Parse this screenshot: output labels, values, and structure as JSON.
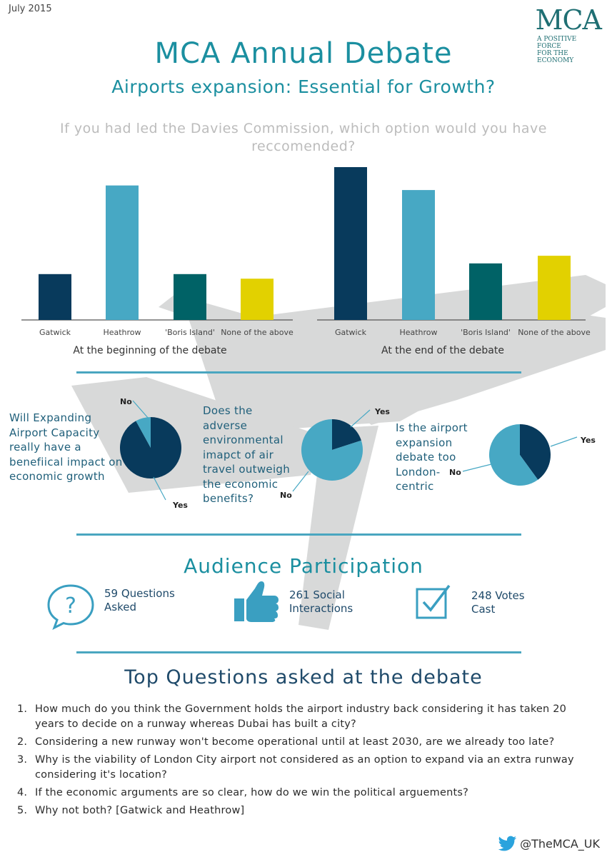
{
  "header": {
    "date": "July 2015",
    "logo_mark": "MCA",
    "logo_tagline_1": "A POSITIVE FORCE",
    "logo_tagline_2": "FOR THE ECONOMY",
    "title": "MCA Annual Debate",
    "subtitle": "Airports expansion: Essential for Growth?"
  },
  "chart_question": "If you had led the Davies Commission, which option would you have reccomended?",
  "colors": {
    "dark": "#083a5c",
    "light": "#47a8c4",
    "teal": "#006266",
    "yellow": "#e2d100",
    "plane": "#d8d9d9"
  },
  "chart_data": [
    {
      "type": "bar",
      "caption": "At the beginning of the debate",
      "categories": [
        "Gatwick",
        "Heathrow",
        "'Boris Island'",
        "None of the above"
      ],
      "values": [
        30,
        88,
        30,
        27
      ],
      "ylim": [
        0,
        100
      ]
    },
    {
      "type": "bar",
      "caption": "At the end of the debate",
      "categories": [
        "Gatwick",
        "Heathrow",
        "'Boris Island'",
        "None of the above"
      ],
      "values": [
        100,
        85,
        37,
        42
      ],
      "ylim": [
        0,
        100
      ]
    },
    {
      "type": "pie",
      "question": "Will Expanding Airport Capacity really have a benefiical impact on economic growth",
      "slices": [
        {
          "label": "Yes",
          "value": 92
        },
        {
          "label": "No",
          "value": 8
        }
      ]
    },
    {
      "type": "pie",
      "question": "Does the adverse environmental imapct of air travel outweigh the economic benefits?",
      "slices": [
        {
          "label": "Yes",
          "value": 20
        },
        {
          "label": "No",
          "value": 80
        }
      ]
    },
    {
      "type": "pie",
      "question": "Is the airport expansion debate too London- centric",
      "slices": [
        {
          "label": "Yes",
          "value": 40
        },
        {
          "label": "No",
          "value": 60
        }
      ]
    }
  ],
  "audience": {
    "title": "Audience Participation",
    "stats": [
      {
        "icon": "question-bubble-icon",
        "line1": "59 Questions",
        "line2": "Asked"
      },
      {
        "icon": "thumbs-up-icon",
        "line1": "261 Social",
        "line2": "Interactions"
      },
      {
        "icon": "checkbox-icon",
        "line1": "248 Votes",
        "line2": "Cast"
      }
    ]
  },
  "top_questions": {
    "title": "Top Questions asked at the debate",
    "items": [
      {
        "num": "1.",
        "text": "How much do you think the Government holds the airport industry back considering it has taken 20 years to decide on a runway whereas Dubai has built a city?"
      },
      {
        "num": "2.",
        "text": "Considering a new runway won't become operational until at least 2030, are we already too late?"
      },
      {
        "num": "3.",
        "text": "Why is the viability of London City airport not considered as an option to expand via an extra runway considering it's location?"
      },
      {
        "num": "4.",
        "text": "If the economic arguments are so clear, how do we win the political arguements?"
      },
      {
        "num": "5.",
        "text": "Why not both? [Gatwick and Heathrow]"
      }
    ]
  },
  "footer": {
    "twitter_handle": "@TheMCA_UK"
  }
}
